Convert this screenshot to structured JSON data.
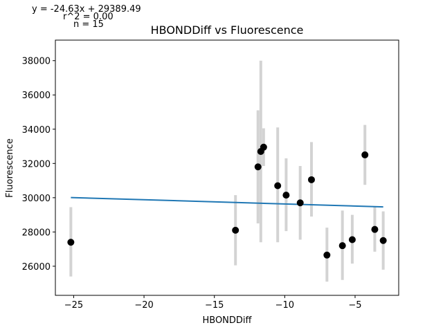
{
  "chart_data": {
    "type": "scatter",
    "title": "HBONDDiff vs Fluorescence",
    "xlabel": "HBONDDiff",
    "ylabel": "Fluorescence",
    "xlim": [
      -26.3,
      -1.9
    ],
    "ylim": [
      24300,
      39200
    ],
    "xticks": [
      -25,
      -20,
      -15,
      -10,
      -5
    ],
    "xtick_labels": [
      "−25",
      "−20",
      "−15",
      "−10",
      "−5"
    ],
    "yticks": [
      26000,
      28000,
      30000,
      32000,
      34000,
      36000,
      38000
    ],
    "ytick_labels": [
      "26000",
      "28000",
      "30000",
      "32000",
      "34000",
      "36000",
      "38000"
    ],
    "annotations": [
      "y = -24.63x + 29389.49",
      "r^2 = 0.00",
      "n = 15"
    ],
    "regression": {
      "slope": -24.63,
      "intercept": 29389.49
    },
    "grid": false,
    "colors": {
      "points": "#000000",
      "errorbars": "#d3d3d3",
      "fit_line": "#1f77b4"
    },
    "points": [
      {
        "x": -25.2,
        "y": 27400,
        "ylow": 25400,
        "yhigh": 29450
      },
      {
        "x": -13.5,
        "y": 28100,
        "ylow": 26050,
        "yhigh": 30150
      },
      {
        "x": -11.9,
        "y": 31800,
        "ylow": 28500,
        "yhigh": 35100
      },
      {
        "x": -11.7,
        "y": 32700,
        "ylow": 27400,
        "yhigh": 38000
      },
      {
        "x": -11.5,
        "y": 32950,
        "ylow": 31850,
        "yhigh": 34050
      },
      {
        "x": -10.5,
        "y": 30700,
        "ylow": 27400,
        "yhigh": 34100
      },
      {
        "x": -9.9,
        "y": 30150,
        "ylow": 28050,
        "yhigh": 32300
      },
      {
        "x": -8.9,
        "y": 29700,
        "ylow": 27550,
        "yhigh": 31850
      },
      {
        "x": -8.1,
        "y": 31050,
        "ylow": 28900,
        "yhigh": 33250
      },
      {
        "x": -7.0,
        "y": 26650,
        "ylow": 25100,
        "yhigh": 28250
      },
      {
        "x": -5.9,
        "y": 27200,
        "ylow": 25200,
        "yhigh": 29250
      },
      {
        "x": -5.2,
        "y": 27550,
        "ylow": 26150,
        "yhigh": 29000
      },
      {
        "x": -4.3,
        "y": 32500,
        "ylow": 30750,
        "yhigh": 34250
      },
      {
        "x": -3.6,
        "y": 28150,
        "ylow": 26850,
        "yhigh": 29450
      },
      {
        "x": -3.0,
        "y": 27500,
        "ylow": 25800,
        "yhigh": 29200
      }
    ]
  }
}
